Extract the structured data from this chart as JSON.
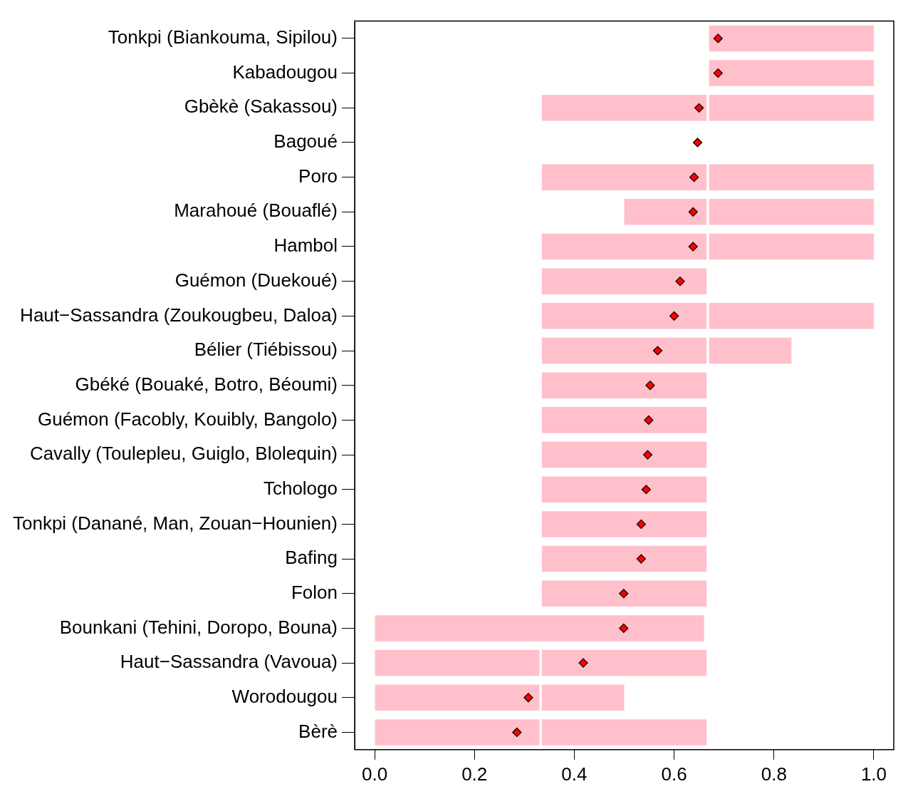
{
  "chart_data": {
    "type": "bar",
    "orientation": "horizontal",
    "categories": [
      "Tonkpi (Biankouma, Sipilou)",
      "Kabadougou",
      "Gbèkè (Sakassou)",
      "Bagoué",
      "Poro",
      "Marahoué (Bouaflé)",
      "Hambol",
      "Guémon (Duekoué)",
      "Haut−Sassandra (Zoukougbeu, Daloa)",
      "Bélier (Tiébissou)",
      "Gbéké (Bouaké, Botro, Béoumi)",
      "Guémon (Facobly, Kouibly, Bangolo)",
      "Cavally (Toulepleu, Guiglo, Blolequin)",
      "Tchologo",
      "Tonkpi (Danané, Man, Zouan−Hounien)",
      "Bafing",
      "Folon",
      "Bounkani (Tehini, Doropo, Bouna)",
      "Haut−Sassandra (Vavoua)",
      "Worodougou",
      "Bèrè"
    ],
    "series": [
      {
        "color": "#ffc0cb",
        "base": [
          null,
          null,
          null,
          null,
          null,
          null,
          null,
          null,
          null,
          null,
          null,
          null,
          null,
          null,
          null,
          null,
          null,
          0,
          0,
          0,
          0
        ],
        "values": [
          null,
          null,
          null,
          null,
          null,
          null,
          null,
          null,
          null,
          null,
          null,
          null,
          null,
          null,
          null,
          null,
          null,
          0.66,
          0.33,
          0.33,
          0.33
        ]
      },
      {
        "color": "#ffc0cb",
        "base": [
          null,
          null,
          0.335,
          null,
          0.335,
          0.5,
          0.335,
          0.335,
          0.335,
          0.335,
          0.335,
          0.335,
          0.335,
          0.335,
          0.335,
          0.335,
          0.335,
          null,
          0.335,
          0.335,
          0.335
        ],
        "values": [
          null,
          null,
          0.33,
          null,
          0.33,
          0.165,
          0.33,
          0.33,
          0.33,
          0.33,
          0.33,
          0.33,
          0.33,
          0.33,
          0.33,
          0.33,
          0.33,
          null,
          0.33,
          0.165,
          0.33
        ]
      },
      {
        "color": "#ffc0cb",
        "base": [
          0.67,
          0.67,
          0.67,
          null,
          0.67,
          0.67,
          0.67,
          null,
          0.67,
          0.67,
          null,
          null,
          null,
          null,
          null,
          null,
          null,
          null,
          null,
          null,
          null
        ],
        "values": [
          0.33,
          0.33,
          0.33,
          null,
          0.33,
          0.33,
          0.33,
          null,
          0.33,
          0.165,
          null,
          null,
          null,
          null,
          null,
          null,
          null,
          null,
          null,
          null,
          null
        ]
      },
      {
        "type": "scatter",
        "color": "#ff0000",
        "marker": "diamond",
        "values": [
          0.688,
          0.688,
          0.65,
          0.647,
          0.64,
          0.638,
          0.638,
          0.612,
          0.6,
          0.567,
          0.552,
          0.549,
          0.547,
          0.544,
          0.534,
          0.534,
          0.499,
          0.499,
          0.418,
          0.308,
          0.285
        ]
      }
    ],
    "xlim": [
      -0.04,
      1.04
    ],
    "xticks": [
      {
        "value": 0,
        "label": "0.0"
      },
      {
        "value": 0.2,
        "label": "0.2"
      },
      {
        "value": 0.4,
        "label": "0.4"
      },
      {
        "value": 0.6,
        "label": "0.6"
      },
      {
        "value": 0.8,
        "label": "0.8"
      },
      {
        "value": 1,
        "label": "1.0"
      }
    ],
    "grid": false,
    "legend": false
  }
}
